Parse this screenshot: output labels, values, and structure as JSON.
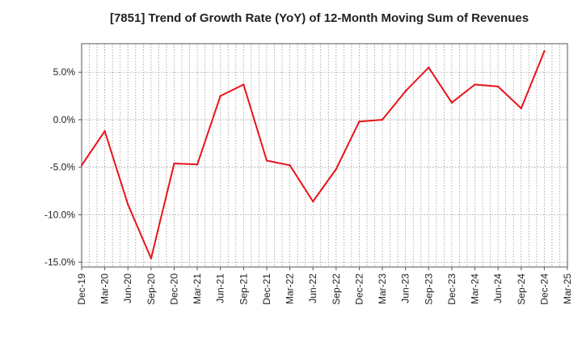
{
  "chart_data": {
    "type": "line",
    "title": "[7851]  Trend of Growth Rate (YoY) of 12-Month Moving Sum of Revenues",
    "xlabel": "",
    "ylabel": "",
    "x_ticks": [
      "Dec-19",
      "Mar-20",
      "Jun-20",
      "Sep-20",
      "Dec-20",
      "Mar-21",
      "Jun-21",
      "Sep-21",
      "Dec-21",
      "Mar-22",
      "Jun-22",
      "Sep-22",
      "Dec-22",
      "Mar-23",
      "Jun-23",
      "Sep-23",
      "Dec-23",
      "Mar-24",
      "Jun-24",
      "Sep-24",
      "Dec-24",
      "Mar-25"
    ],
    "y_ticks": [
      5.0,
      0.0,
      -5.0,
      -10.0,
      -15.0
    ],
    "y_tick_labels": [
      "5.0%",
      "0.0%",
      "-5.0%",
      "-10.0%",
      "-15.0%"
    ],
    "ylim": [
      -15.5,
      8.0
    ],
    "grid": true,
    "series": [
      {
        "color": "#e8141b",
        "x": [
          "Dec-19",
          "Mar-20",
          "Jun-20",
          "Sep-20",
          "Dec-20",
          "Mar-21",
          "Jun-21",
          "Sep-21",
          "Dec-21",
          "Mar-22",
          "Jun-22",
          "Sep-22",
          "Dec-22",
          "Mar-23",
          "Jun-23",
          "Sep-23",
          "Dec-23",
          "Mar-24",
          "Jun-24",
          "Sep-24",
          "Dec-24"
        ],
        "values": [
          -4.8,
          -1.2,
          -8.9,
          -14.6,
          -4.6,
          -4.7,
          2.5,
          3.7,
          -4.3,
          -4.8,
          -8.6,
          -5.2,
          -0.2,
          0.0,
          3.0,
          5.5,
          1.8,
          3.7,
          3.5,
          1.2,
          7.2
        ]
      }
    ]
  }
}
